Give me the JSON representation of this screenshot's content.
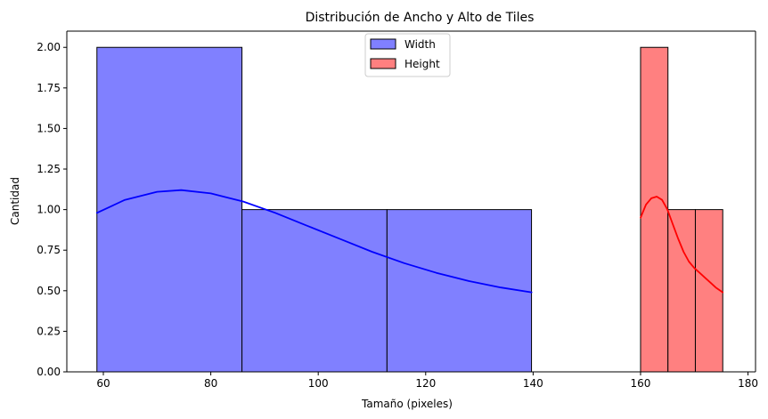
{
  "chart_data": {
    "type": "histogram",
    "title": "Distribución de Ancho y Alto de Tiles",
    "xlabel": "Tamaño (pixeles)",
    "ylabel": "Cantidad",
    "xlim": [
      53.2,
      181.4
    ],
    "ylim": [
      0,
      2.1
    ],
    "xticks": [
      60,
      80,
      100,
      120,
      140,
      160,
      180
    ],
    "yticks": [
      0.0,
      0.25,
      0.5,
      0.75,
      1.0,
      1.25,
      1.5,
      1.75,
      2.0
    ],
    "xtick_labels": [
      "60",
      "80",
      "100",
      "120",
      "140",
      "160",
      "180"
    ],
    "ytick_labels": [
      "0.00",
      "0.25",
      "0.50",
      "0.75",
      "1.00",
      "1.25",
      "1.50",
      "1.75",
      "2.00"
    ],
    "legend_position": "upper center",
    "series": [
      {
        "name": "Width",
        "color": "#0000ff",
        "bins": [
          {
            "x0": 58.8,
            "x1": 85.8,
            "count": 2
          },
          {
            "x0": 85.8,
            "x1": 112.8,
            "count": 1
          },
          {
            "x0": 112.8,
            "x1": 139.7,
            "count": 1
          }
        ],
        "kde": {
          "x": [
            58.8,
            64,
            70,
            74.5,
            80,
            86,
            92,
            98,
            104,
            110,
            116,
            122,
            128,
            134,
            139.7
          ],
          "y": [
            0.98,
            1.06,
            1.11,
            1.12,
            1.1,
            1.05,
            0.98,
            0.9,
            0.82,
            0.74,
            0.67,
            0.61,
            0.56,
            0.52,
            0.49
          ]
        }
      },
      {
        "name": "Height",
        "color": "#ff0000",
        "bins": [
          {
            "x0": 160.0,
            "x1": 165.1,
            "count": 2
          },
          {
            "x0": 165.1,
            "x1": 170.2,
            "count": 1
          },
          {
            "x0": 170.2,
            "x1": 175.3,
            "count": 1
          }
        ],
        "kde": {
          "x": [
            160.0,
            161.0,
            162.0,
            163.0,
            164.0,
            165.0,
            166.0,
            167.0,
            168.0,
            169.0,
            170.0,
            171.0,
            172.0,
            173.0,
            174.0,
            175.3
          ],
          "y": [
            0.95,
            1.03,
            1.07,
            1.08,
            1.06,
            1.0,
            0.91,
            0.82,
            0.74,
            0.68,
            0.64,
            0.61,
            0.58,
            0.55,
            0.52,
            0.49
          ]
        }
      }
    ]
  }
}
